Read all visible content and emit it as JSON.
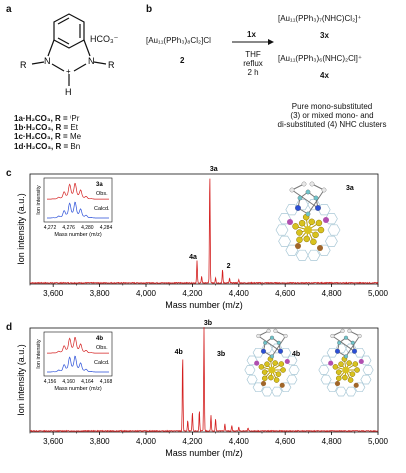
{
  "panels": {
    "a": {
      "label": "a",
      "anion": "HCO₃⁻",
      "atoms": {
        "left": "N",
        "right": "N",
        "R_left": "R",
        "R_right": "R",
        "H": "H",
        "plus": "+"
      },
      "compounds": [
        {
          "id": "1a·H₂CO₃, R = ",
          "r": "ⁱPr"
        },
        {
          "id": "1b·H₂CO₃, R = ",
          "r": "Et"
        },
        {
          "id": "1c·H₂CO₃, R = ",
          "r": "Me"
        },
        {
          "id": "1d·H₂CO₃, R = ",
          "r": "Bn"
        }
      ]
    },
    "b": {
      "label": "b",
      "reactant": "[Au₁₁(PPh₃)₈Cl₂]Cl",
      "reactant_id": "2",
      "reagent": "1x",
      "conditions": [
        "THF",
        "reflux",
        "2 h"
      ],
      "product1": "[Au₁₁(PPh₃)₇(NHC)Cl₂]⁺",
      "product1_id": "3x",
      "product2": "[Au₁₁(PPh₃)₆(NHC)₂Cl]⁺",
      "product2_id": "4x",
      "note": [
        "Pure mono-substituted",
        "(3) or mixed mono- and",
        "di-substituted (4) NHC clusters"
      ]
    },
    "c": {
      "label": "c",
      "ylabel": "Ion intensity (a.u.)",
      "xlabel": "Mass number (m/z)",
      "peak_labels": [
        "3a",
        "4a",
        "2"
      ],
      "inset": {
        "title": "3a",
        "obs": "Obs.",
        "calcd": "Calcd.",
        "ylabel": "Ion intensity",
        "xlabel": "Mass number (m/z)",
        "ticks": [
          "4,272",
          "4,276",
          "4,280",
          "4,284"
        ]
      },
      "structure_label": "3a"
    },
    "d": {
      "label": "d",
      "ylabel": "Ion intensity (a.u.)",
      "xlabel": "Mass number (m/z)",
      "peak_labels": [
        "3b",
        "4b"
      ],
      "inset": {
        "title": "4b",
        "obs": "Obs.",
        "calcd": "Calcd.",
        "ylabel": "Ion intensity",
        "xlabel": "Mass number (m/z)",
        "ticks": [
          "4,156",
          "4,160",
          "4,164",
          "4,168"
        ]
      },
      "structure_labels": [
        "3b",
        "4b"
      ]
    }
  },
  "chart_data": [
    {
      "type": "line",
      "panel": "c",
      "xlabel": "Mass number (m/z)",
      "ylabel": "Ion intensity (a.u.)",
      "xlim": [
        3500,
        5000
      ],
      "xticks": [
        "3,600",
        "3,800",
        "4,000",
        "4,200",
        "4,400",
        "4,600",
        "4,800",
        "5,000"
      ],
      "color": "#d42020",
      "peaks": [
        {
          "x": 4275,
          "y": 1.0,
          "label": "3a"
        },
        {
          "x": 4220,
          "y": 0.2,
          "label": "4a"
        },
        {
          "x": 4330,
          "y": 0.12,
          "label": "2"
        },
        {
          "x": 4240,
          "y": 0.06
        },
        {
          "x": 4300,
          "y": 0.05
        },
        {
          "x": 4360,
          "y": 0.04
        },
        {
          "x": 4400,
          "y": 0.03
        }
      ]
    },
    {
      "type": "line",
      "panel": "d",
      "xlabel": "Mass number (m/z)",
      "ylabel": "Ion intensity (a.u.)",
      "xlim": [
        3500,
        5000
      ],
      "xticks": [
        "3,600",
        "3,800",
        "4,000",
        "4,200",
        "4,400",
        "4,600",
        "4,800",
        "5,000"
      ],
      "color": "#d42020",
      "peaks": [
        {
          "x": 4158,
          "y": 0.72,
          "label": "4b"
        },
        {
          "x": 4250,
          "y": 1.0,
          "label": "3b"
        },
        {
          "x": 4180,
          "y": 0.1
        },
        {
          "x": 4200,
          "y": 0.18
        },
        {
          "x": 4230,
          "y": 0.2
        },
        {
          "x": 4280,
          "y": 0.15
        },
        {
          "x": 4300,
          "y": 0.12
        },
        {
          "x": 4340,
          "y": 0.07
        },
        {
          "x": 4370,
          "y": 0.05
        },
        {
          "x": 4400,
          "y": 0.04
        },
        {
          "x": 4440,
          "y": 0.03
        }
      ]
    }
  ]
}
